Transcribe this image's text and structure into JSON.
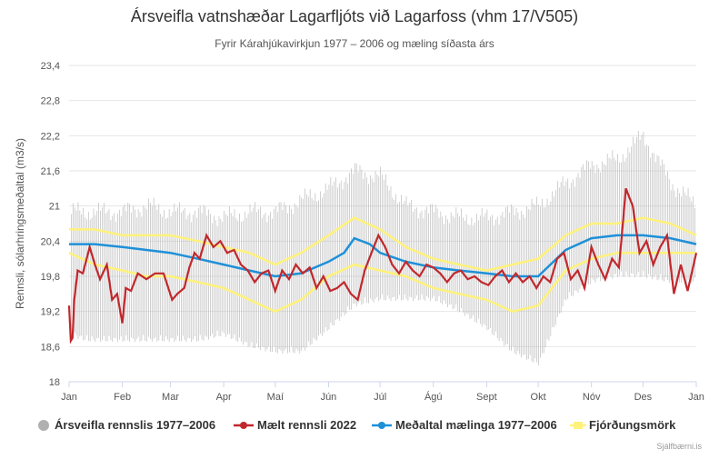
{
  "chart_data": {
    "type": "line",
    "title": "Ársveifla vatnshæðar Lagarfljóts við Lagarfoss (vhm 17/V505)",
    "subtitle": "Fyrir Kárahjúkavirkjun 1977 – 2006 og mæling síðasta árs",
    "ylabel": "Rennsli, sólarhringsmeðaltal (m3/s)",
    "xlabel": "",
    "ylim": [
      18,
      23.4
    ],
    "yticks": [
      "18",
      "18,6",
      "19,2",
      "19,8",
      "20,4",
      "21",
      "21,6",
      "22,2",
      "22,8",
      "23,4"
    ],
    "ytick_values": [
      18,
      18.6,
      19.2,
      19.8,
      20.4,
      21,
      21.6,
      22.2,
      22.8,
      23.4
    ],
    "xlim": [
      0,
      365
    ],
    "xticks": [
      "Jan",
      "Feb",
      "Mar",
      "Apr",
      "Maí",
      "Jún",
      "Júl",
      "Ágú",
      "Sept",
      "Okt",
      "Nóv",
      "Des",
      "Jan"
    ],
    "xtick_days": [
      0,
      31,
      59,
      90,
      120,
      151,
      181,
      212,
      243,
      273,
      304,
      334,
      365
    ],
    "grid": "horizontal",
    "legend_position": "bottom",
    "legend": [
      "Ársveifla rennslis 1977–2006",
      "Mælt rennsli 2022",
      "Meðaltal mælinga 1977–2006",
      "Fjórðungsmörk"
    ],
    "colors": {
      "range": "#b0b0b0",
      "measured": "#c0282d",
      "mean": "#1e90d8",
      "quartiles": "#fff27a"
    },
    "series": [
      {
        "name": "Ársveifla rennslis 1977–2006",
        "kind": "range",
        "x": [
          0,
          10,
          20,
          31,
          45,
          59,
          75,
          90,
          105,
          120,
          135,
          151,
          166,
          181,
          196,
          212,
          227,
          243,
          258,
          273,
          289,
          304,
          319,
          334,
          350,
          365
        ],
        "min": [
          18.9,
          18.8,
          18.8,
          18.8,
          18.8,
          18.8,
          18.8,
          18.9,
          18.7,
          18.6,
          18.6,
          19.0,
          19.4,
          19.5,
          19.5,
          19.5,
          19.3,
          19.0,
          18.6,
          18.4,
          19.5,
          19.8,
          19.9,
          19.9,
          19.8,
          19.8
        ],
        "max": [
          20.9,
          20.9,
          20.9,
          20.9,
          21.0,
          20.9,
          20.9,
          20.8,
          20.9,
          20.9,
          21.1,
          21.3,
          21.6,
          21.5,
          21.0,
          20.9,
          20.8,
          20.8,
          20.9,
          21.0,
          21.4,
          21.7,
          21.8,
          22.2,
          21.4,
          21.0
        ]
      },
      {
        "name": "Fjórðungsmörk",
        "kind": "quartiles",
        "x": [
          0,
          15,
          31,
          45,
          59,
          75,
          90,
          105,
          120,
          135,
          151,
          166,
          181,
          196,
          212,
          227,
          243,
          258,
          273,
          289,
          304,
          319,
          334,
          350,
          365
        ],
        "upper": [
          20.6,
          20.6,
          20.5,
          20.5,
          20.5,
          20.4,
          20.3,
          20.2,
          20.0,
          20.2,
          20.5,
          20.8,
          20.6,
          20.3,
          20.1,
          20.0,
          19.9,
          20.0,
          20.1,
          20.5,
          20.7,
          20.7,
          20.8,
          20.7,
          20.5
        ],
        "lower": [
          20.2,
          20.0,
          19.9,
          19.8,
          19.8,
          19.7,
          19.6,
          19.4,
          19.2,
          19.4,
          19.8,
          20.0,
          19.9,
          19.8,
          19.6,
          19.5,
          19.4,
          19.2,
          19.3,
          19.9,
          20.1,
          20.2,
          20.2,
          20.2,
          20.2
        ]
      },
      {
        "name": "Meðaltal mælinga 1977–2006",
        "kind": "line",
        "x": [
          0,
          15,
          31,
          45,
          59,
          75,
          90,
          105,
          120,
          135,
          151,
          160,
          166,
          175,
          181,
          196,
          212,
          227,
          243,
          258,
          273,
          289,
          304,
          319,
          334,
          350,
          365
        ],
        "y": [
          20.35,
          20.35,
          20.3,
          20.25,
          20.2,
          20.1,
          20.0,
          19.9,
          19.8,
          19.85,
          20.05,
          20.2,
          20.45,
          20.35,
          20.2,
          20.05,
          19.95,
          19.9,
          19.85,
          19.8,
          19.8,
          20.25,
          20.45,
          20.5,
          20.5,
          20.45,
          20.35
        ]
      },
      {
        "name": "Mælt rennsli 2022",
        "kind": "line",
        "x": [
          0,
          1,
          2,
          3,
          5,
          8,
          12,
          15,
          18,
          22,
          25,
          28,
          31,
          33,
          36,
          40,
          45,
          50,
          55,
          60,
          63,
          67,
          70,
          73,
          76,
          80,
          84,
          88,
          92,
          96,
          100,
          104,
          108,
          112,
          116,
          120,
          124,
          128,
          132,
          136,
          140,
          144,
          148,
          152,
          156,
          160,
          164,
          168,
          172,
          176,
          180,
          184,
          188,
          192,
          196,
          200,
          204,
          208,
          212,
          216,
          220,
          224,
          228,
          232,
          236,
          240,
          244,
          248,
          252,
          256,
          260,
          264,
          268,
          272,
          276,
          280,
          284,
          288,
          292,
          296,
          300,
          304,
          308,
          312,
          316,
          320,
          322,
          324,
          328,
          332,
          336,
          340,
          344,
          348,
          352,
          356,
          360,
          365
        ],
        "y": [
          19.3,
          18.7,
          18.75,
          19.4,
          19.9,
          19.85,
          20.3,
          20.0,
          19.75,
          20.0,
          19.4,
          19.5,
          19.0,
          19.6,
          19.55,
          19.85,
          19.75,
          19.85,
          19.85,
          19.4,
          19.5,
          19.6,
          19.95,
          20.2,
          20.1,
          20.5,
          20.3,
          20.4,
          20.2,
          20.25,
          20.0,
          19.9,
          19.7,
          19.85,
          19.9,
          19.55,
          19.9,
          19.75,
          20.0,
          19.85,
          19.95,
          19.6,
          19.8,
          19.55,
          19.6,
          19.7,
          19.5,
          19.4,
          19.9,
          20.2,
          20.5,
          20.3,
          20.0,
          19.85,
          20.05,
          19.9,
          19.8,
          20.0,
          19.95,
          19.85,
          19.7,
          19.85,
          19.9,
          19.75,
          19.8,
          19.7,
          19.65,
          19.8,
          19.9,
          19.7,
          19.85,
          19.7,
          19.8,
          19.6,
          19.8,
          19.7,
          20.1,
          20.2,
          19.75,
          19.9,
          19.6,
          20.3,
          20.0,
          19.75,
          20.1,
          19.95,
          20.6,
          21.3,
          21.0,
          20.2,
          20.4,
          20.0,
          20.3,
          20.5,
          19.5,
          20.0,
          19.55,
          20.2
        ]
      }
    ]
  },
  "credit": "Sjálfbærni.is"
}
